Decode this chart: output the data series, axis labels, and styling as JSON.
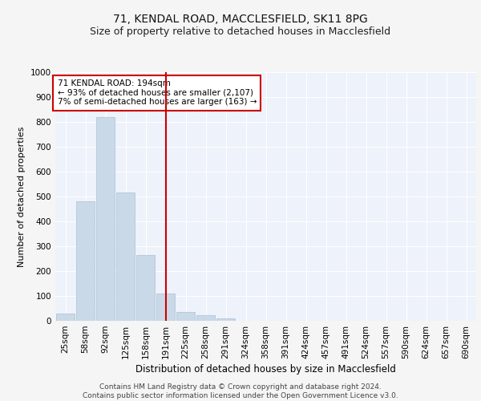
{
  "title1": "71, KENDAL ROAD, MACCLESFIELD, SK11 8PG",
  "title2": "Size of property relative to detached houses in Macclesfield",
  "xlabel": "Distribution of detached houses by size in Macclesfield",
  "ylabel": "Number of detached properties",
  "categories": [
    "25sqm",
    "58sqm",
    "92sqm",
    "125sqm",
    "158sqm",
    "191sqm",
    "225sqm",
    "258sqm",
    "291sqm",
    "324sqm",
    "358sqm",
    "391sqm",
    "424sqm",
    "457sqm",
    "491sqm",
    "524sqm",
    "557sqm",
    "590sqm",
    "624sqm",
    "657sqm",
    "690sqm"
  ],
  "values": [
    30,
    480,
    820,
    515,
    265,
    110,
    37,
    22,
    10,
    0,
    0,
    0,
    0,
    0,
    0,
    0,
    0,
    0,
    0,
    0,
    0
  ],
  "bar_color": "#c9d9e8",
  "bar_edgecolor": "#a8c0d4",
  "vline_x": 5.0,
  "vline_color": "#cc0000",
  "annotation_text": "71 KENDAL ROAD: 194sqm\n← 93% of detached houses are smaller (2,107)\n7% of semi-detached houses are larger (163) →",
  "annotation_box_color": "#ffffff",
  "annotation_box_edgecolor": "#cc0000",
  "ylim": [
    0,
    1000
  ],
  "yticks": [
    0,
    100,
    200,
    300,
    400,
    500,
    600,
    700,
    800,
    900,
    1000
  ],
  "bg_color": "#eef2fa",
  "grid_color": "#ffffff",
  "footer_text": "Contains HM Land Registry data © Crown copyright and database right 2024.\nContains public sector information licensed under the Open Government Licence v3.0.",
  "title1_fontsize": 10,
  "title2_fontsize": 9,
  "xlabel_fontsize": 8.5,
  "ylabel_fontsize": 8,
  "tick_fontsize": 7.5,
  "annot_fontsize": 7.5,
  "footer_fontsize": 6.5
}
